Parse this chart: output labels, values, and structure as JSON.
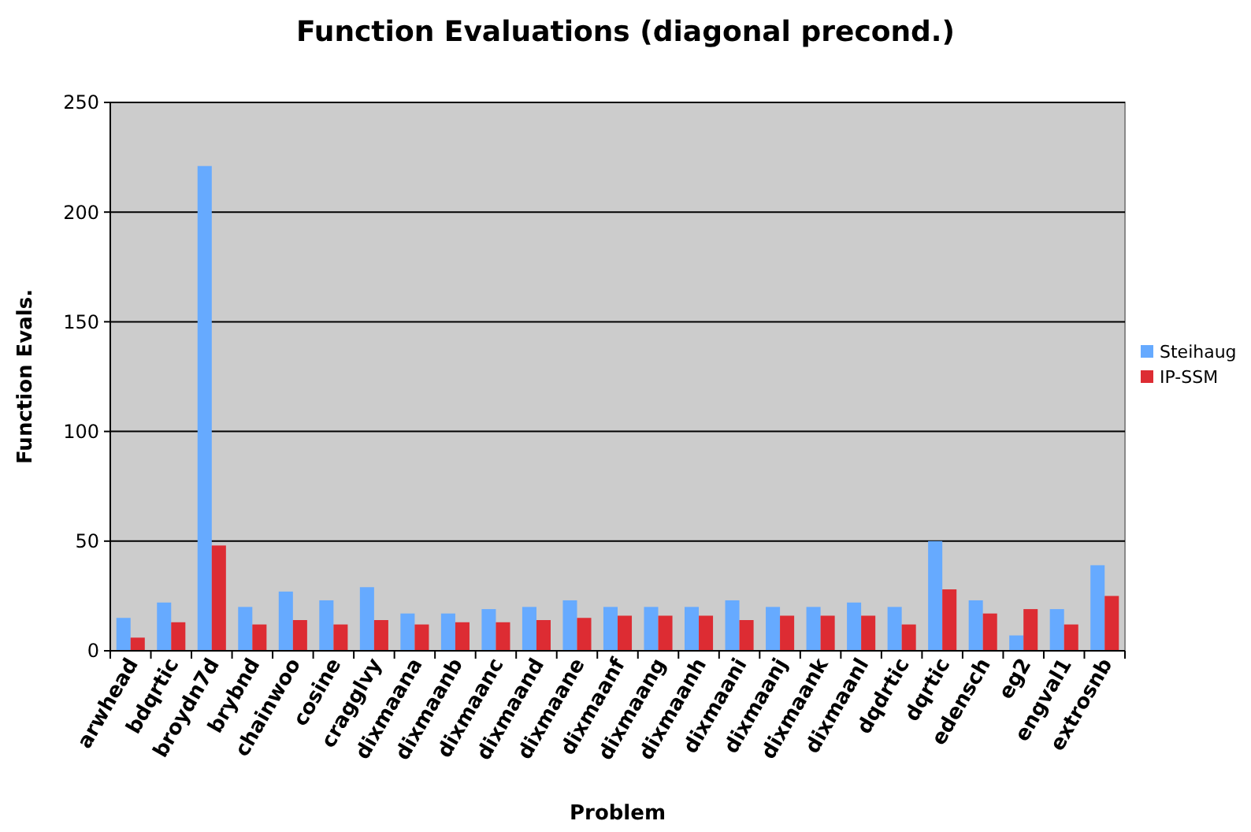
{
  "chart_data": {
    "type": "bar",
    "title": "Function Evaluations (diagonal precond.)",
    "xlabel": "Problem",
    "ylabel": "Function Evals.",
    "categories": [
      "arwhead",
      "bdqrtic",
      "broydn7d",
      "brybnd",
      "chainwoo",
      "cosine",
      "cragglvy",
      "dixmaana",
      "dixmaanb",
      "dixmaanc",
      "dixmaand",
      "dixmaane",
      "dixmaanf",
      "dixmaang",
      "dixmaanh",
      "dixmaani",
      "dixmaanj",
      "dixmaank",
      "dixmaanl",
      "dqdrtic",
      "dqrtic",
      "edensch",
      "eg2",
      "engval1",
      "extrosnb"
    ],
    "series": [
      {
        "name": "Steihaug",
        "color": "#66aaff",
        "values": [
          15,
          22,
          221,
          20,
          27,
          23,
          29,
          17,
          17,
          19,
          20,
          23,
          20,
          20,
          20,
          23,
          20,
          20,
          22,
          20,
          50,
          23,
          7,
          19,
          39
        ]
      },
      {
        "name": "IP-SSM",
        "color": "#dd2c33",
        "values": [
          6,
          13,
          48,
          12,
          14,
          12,
          14,
          12,
          13,
          13,
          14,
          15,
          16,
          16,
          16,
          14,
          16,
          16,
          16,
          12,
          28,
          17,
          19,
          12,
          25
        ]
      }
    ],
    "ylim": [
      0,
      250
    ],
    "yticks": [
      0,
      50,
      100,
      150,
      200,
      250
    ],
    "grid": "y",
    "legend": "right"
  }
}
